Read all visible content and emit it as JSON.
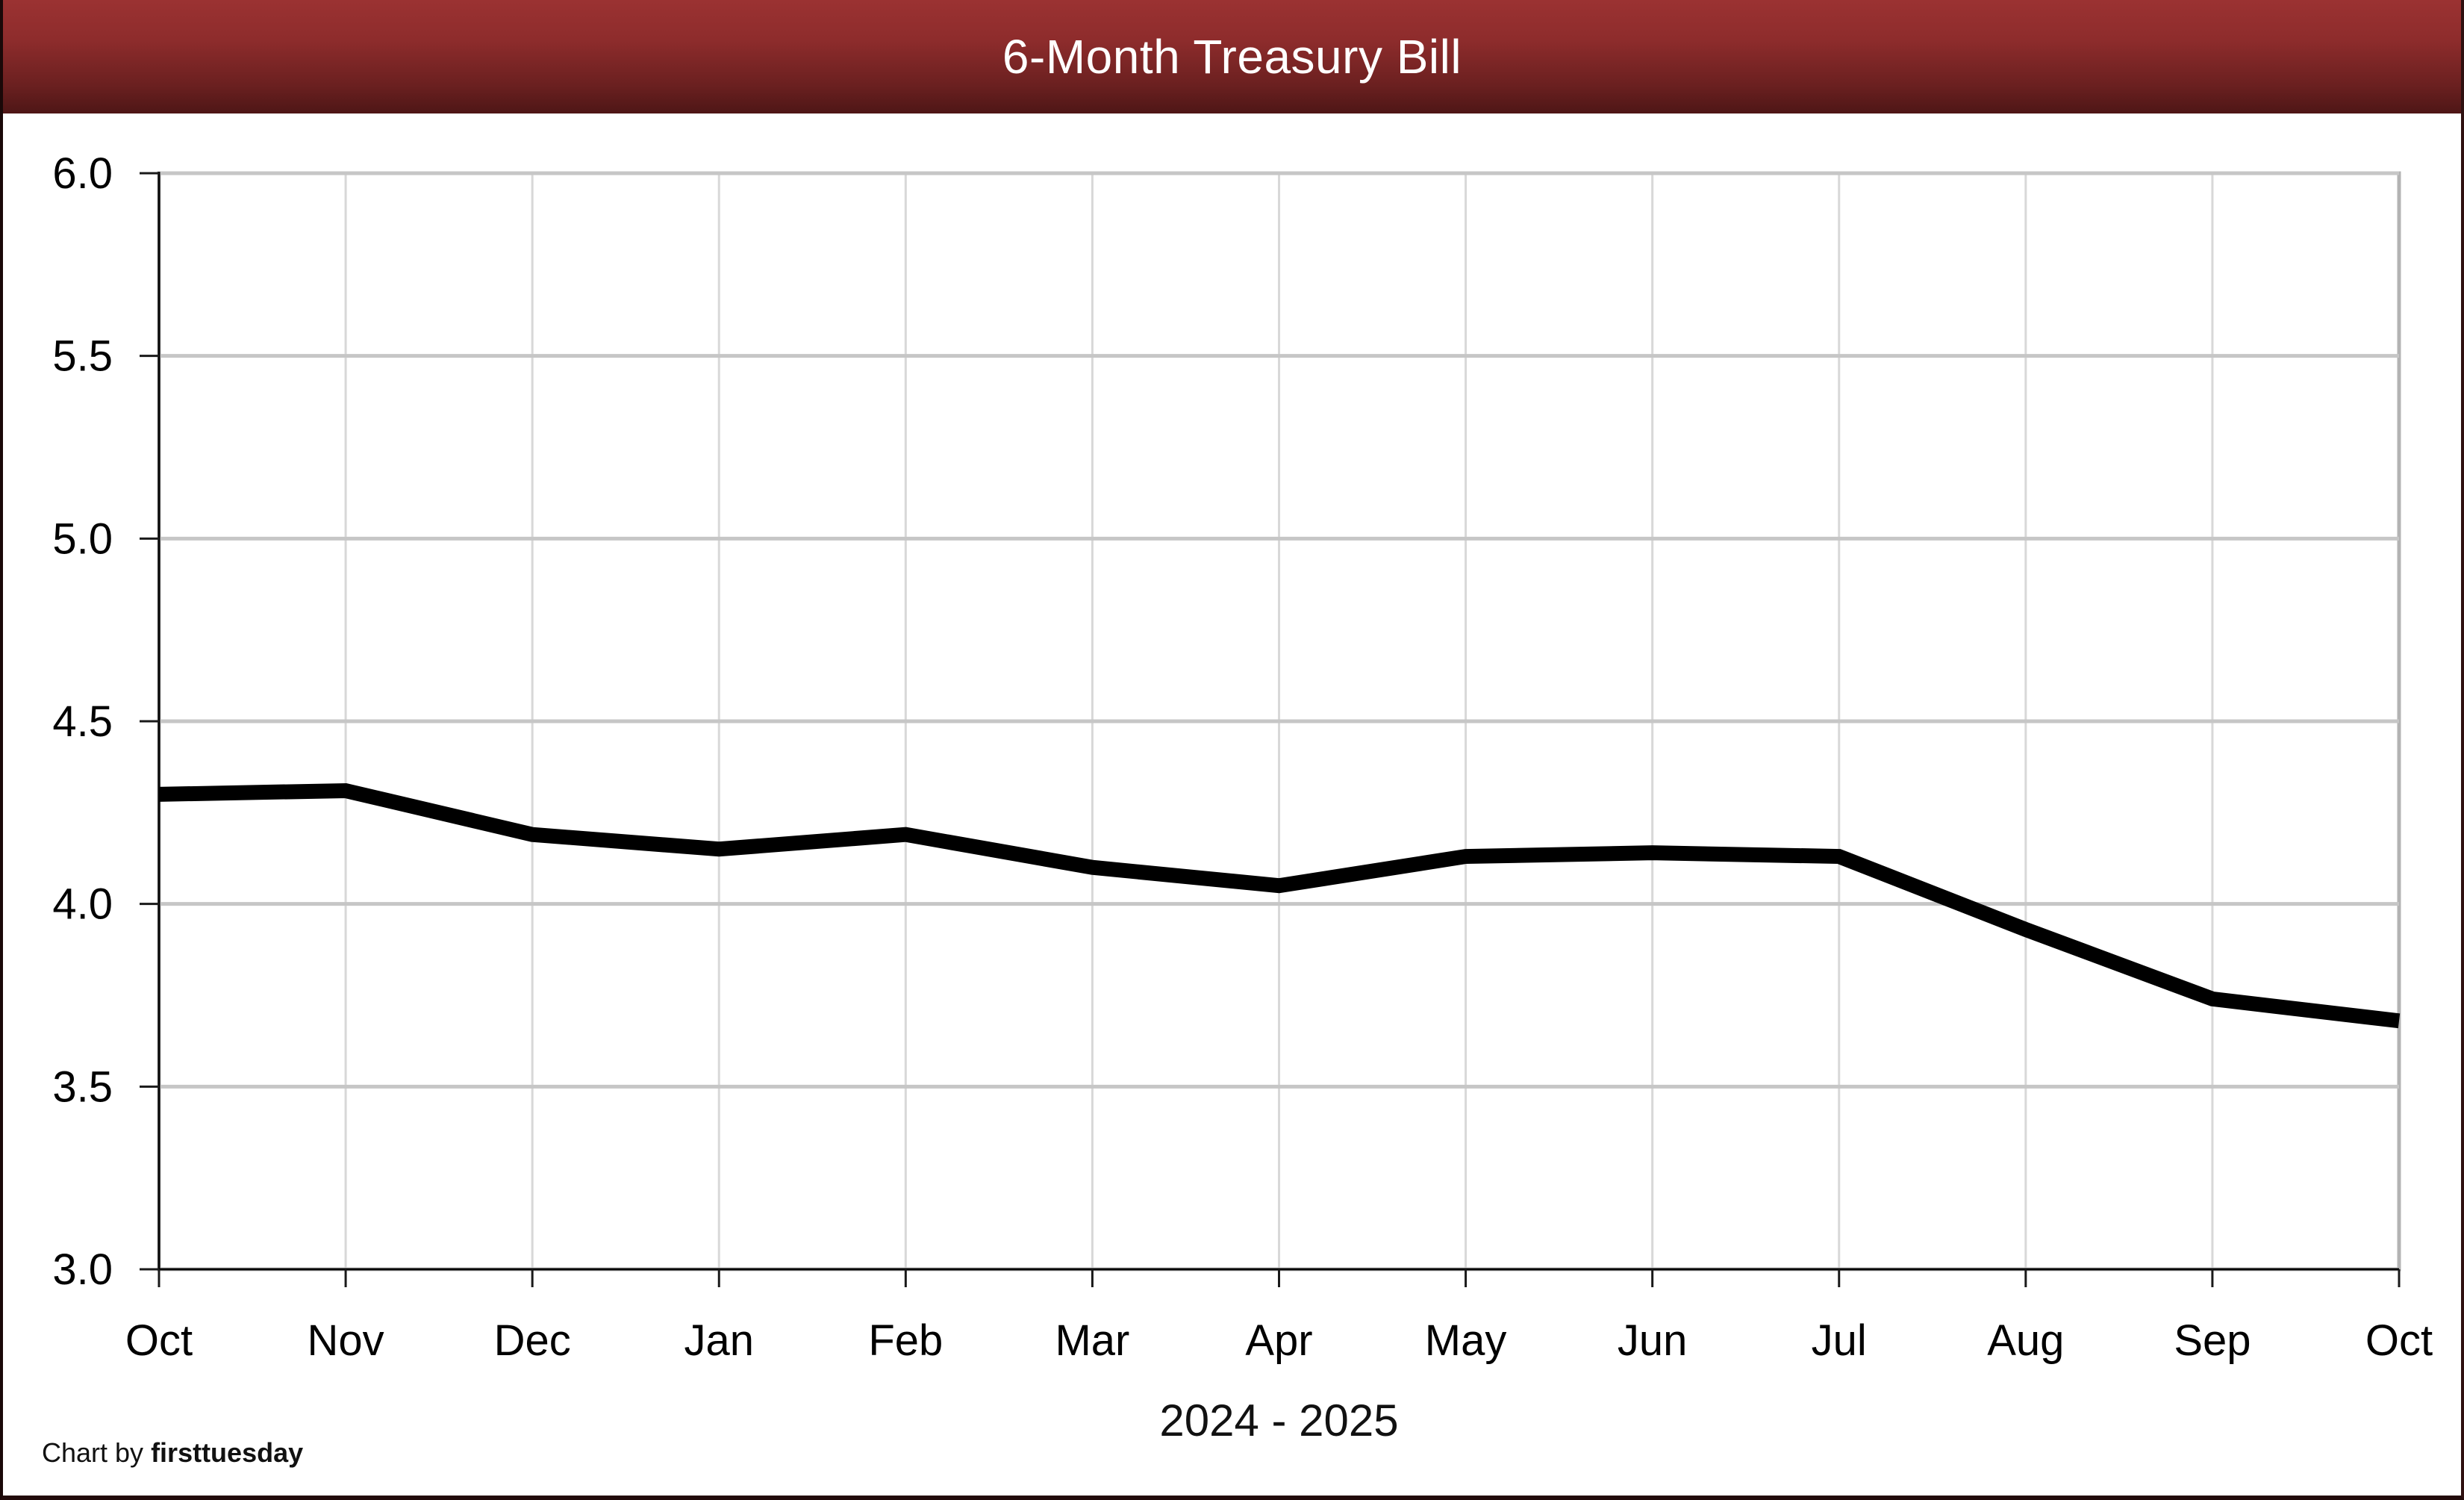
{
  "header": {
    "title": "6-Month Treasury Bill"
  },
  "footer": {
    "credit_prefix": "Chart by ",
    "credit_brand": "firsttuesday"
  },
  "colors": {
    "header_gradient_top": "#9b3232",
    "header_gradient_bottom": "#4e1616",
    "title_text": "#ffffff",
    "plot_background": "#ffffff",
    "plot_border": "#b3b3b3",
    "gridline_horizontal": "#c6c6c6",
    "gridline_vertical": "#d8d8d8",
    "axis_line": "#000000",
    "tick_mark": "#1a1a1a",
    "data_line": "#000000",
    "label_text": "#000000"
  },
  "chart_data": {
    "type": "line",
    "title": "6-Month Treasury Bill",
    "categories": [
      "Oct",
      "Nov",
      "Dec",
      "Jan",
      "Feb",
      "Mar",
      "Apr",
      "May",
      "Jun",
      "Jul",
      "Aug",
      "Sep",
      "Oct"
    ],
    "series": [
      {
        "name": "6-Month Treasury Bill",
        "values": [
          4.3,
          4.31,
          4.19,
          4.15,
          4.19,
          4.1,
          4.05,
          4.13,
          4.14,
          4.13,
          3.93,
          3.74,
          3.68
        ]
      }
    ],
    "xlabel": "2024 - 2025",
    "ylabel": "",
    "ylim": [
      3.0,
      6.0
    ],
    "y_tick_step": 0.5,
    "y_tick_labels": [
      "6.0",
      "5.5",
      "5.0",
      "4.5",
      "4.0",
      "3.5",
      "3.0"
    ],
    "grid": true,
    "legend_position": "none"
  }
}
